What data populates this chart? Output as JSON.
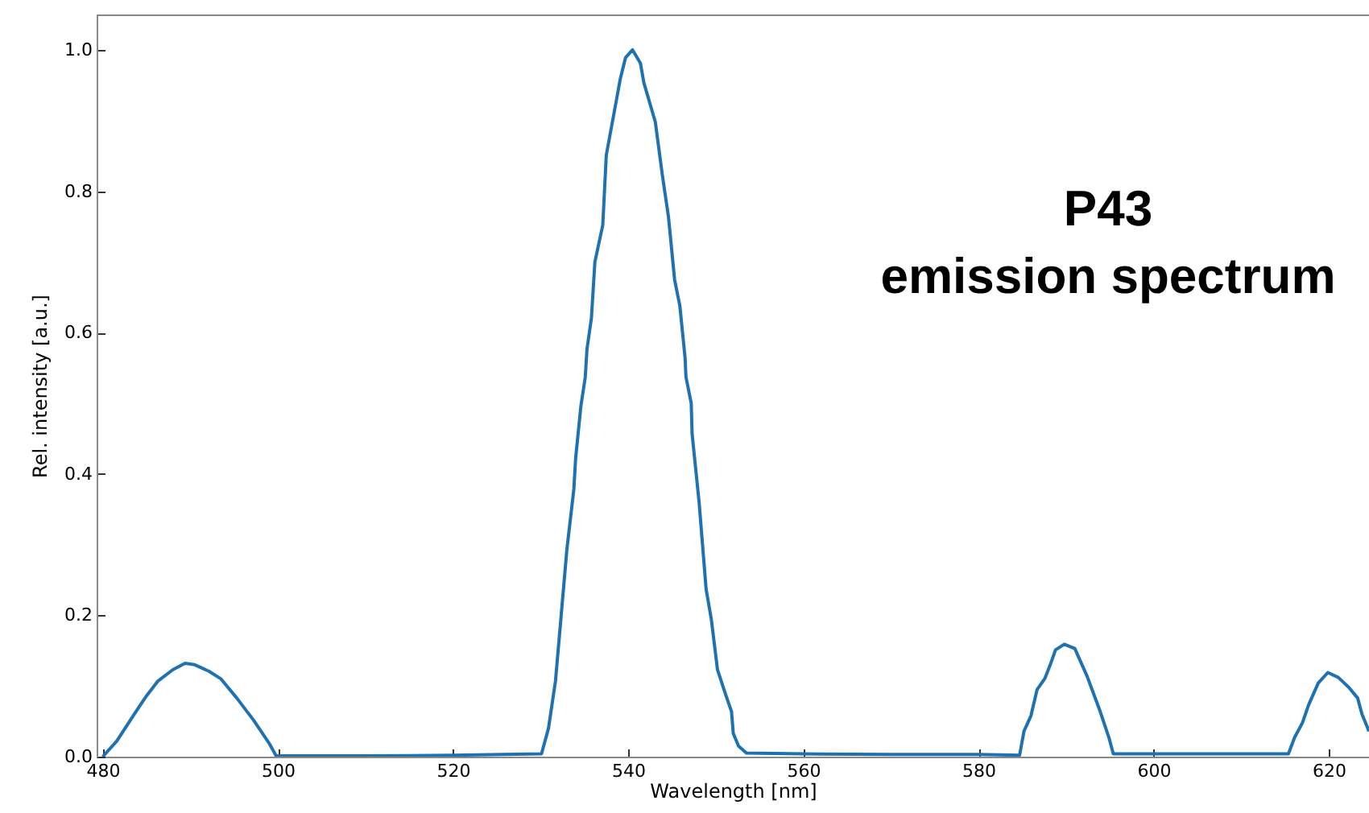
{
  "chart_data": {
    "type": "line",
    "title": "P43",
    "subtitle": "emission spectrum",
    "xlabel": "Wavelength [nm]",
    "ylabel": "Rel. intensity [a.u.]",
    "xlim": [
      479.3,
      624.6
    ],
    "ylim": [
      0,
      1.05
    ],
    "xticks": [
      480,
      500,
      520,
      540,
      560,
      580,
      600,
      620
    ],
    "yticks": [
      {
        "value": 0,
        "label": "0.0"
      },
      0.2,
      0.4,
      0.6,
      0.8,
      {
        "value": 1,
        "label": "1.0"
      }
    ],
    "grid": false,
    "marker": "none",
    "line_style": "solid",
    "series": [
      {
        "color": "#1f72b2",
        "x": [
          480,
          481.6,
          483.8,
          485,
          486.3,
          488,
          489.4,
          490.5,
          492.1,
          493.5,
          495.3,
          497.2,
          499,
          499.8,
          510,
          520,
          530.1,
          530.9,
          531.7,
          533,
          533.8,
          534,
          534.6,
          535.1,
          535.3,
          535.8,
          536.2,
          537.1,
          537.5,
          538.6,
          539.1,
          539.7,
          540.5,
          541.4,
          541.8,
          543.1,
          543.9,
          544.6,
          545.3,
          545.9,
          546.5,
          546.6,
          547.2,
          547.3,
          548.1,
          548.9,
          549.5,
          550.2,
          551.1,
          551.8,
          552.0,
          552.6,
          553.5,
          560,
          570,
          580,
          584.7,
          585.2,
          586,
          586.7,
          587.6,
          588.2,
          588.8,
          589.8,
          591,
          592.4,
          593.9,
          594.9,
          595.4,
          600,
          610,
          615.4,
          616.1,
          617,
          617.7,
          618.8,
          619.9,
          621.1,
          622.3,
          623.3,
          623.8,
          624.6
        ],
        "values": [
          0,
          0.022,
          0.064,
          0.086,
          0.107,
          0.123,
          0.132,
          0.13,
          0.121,
          0.11,
          0.083,
          0.052,
          0.019,
          0.001,
          0.001,
          0.002,
          0.004,
          0.04,
          0.107,
          0.293,
          0.379,
          0.422,
          0.496,
          0.537,
          0.577,
          0.62,
          0.7,
          0.752,
          0.851,
          0.925,
          0.959,
          0.989,
          1.0,
          0.981,
          0.953,
          0.898,
          0.823,
          0.764,
          0.675,
          0.638,
          0.564,
          0.537,
          0.5,
          0.457,
          0.36,
          0.237,
          0.194,
          0.123,
          0.089,
          0.064,
          0.033,
          0.015,
          0.005,
          0.004,
          0.003,
          0.003,
          0.002,
          0.036,
          0.058,
          0.095,
          0.111,
          0.13,
          0.151,
          0.159,
          0.153,
          0.114,
          0.064,
          0.027,
          0.004,
          0.004,
          0.004,
          0.004,
          0.027,
          0.048,
          0.073,
          0.104,
          0.119,
          0.112,
          0.098,
          0.083,
          0.06,
          0.036
        ]
      }
    ]
  }
}
